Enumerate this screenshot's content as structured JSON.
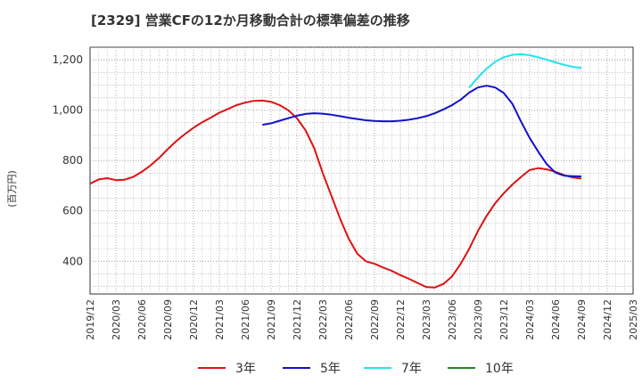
{
  "chart_data": {
    "type": "line",
    "title": "[2329]  営業CFの12か月移動合計の標準偏差の推移",
    "ylabel": "(百万円)",
    "xlabel": "",
    "ylim": [
      270,
      1250
    ],
    "y_ticks": [
      400,
      600,
      800,
      "1,000",
      "1,200"
    ],
    "x_ticks": [
      "2019/12",
      "2020/03",
      "2020/06",
      "2020/09",
      "2020/12",
      "2021/03",
      "2021/06",
      "2021/09",
      "2021/12",
      "2022/03",
      "2022/06",
      "2022/09",
      "2022/12",
      "2023/03",
      "2023/06",
      "2023/09",
      "2023/12",
      "2024/03",
      "2024/06",
      "2024/09",
      "2024/12",
      "2025/03"
    ],
    "grid": true,
    "legend_position": "bottom",
    "series": [
      {
        "name": "3年",
        "color": "#dd1111",
        "x": [
          "2019/12",
          "2020/01",
          "2020/02",
          "2020/03",
          "2020/04",
          "2020/05",
          "2020/06",
          "2020/07",
          "2020/08",
          "2020/09",
          "2020/10",
          "2020/11",
          "2020/12",
          "2021/01",
          "2021/02",
          "2021/03",
          "2021/04",
          "2021/05",
          "2021/06",
          "2021/07",
          "2021/08",
          "2021/09",
          "2021/10",
          "2021/11",
          "2021/12",
          "2022/01",
          "2022/02",
          "2022/03",
          "2022/04",
          "2022/05",
          "2022/06",
          "2022/07",
          "2022/08",
          "2022/09",
          "2022/10",
          "2022/11",
          "2022/12",
          "2023/01",
          "2023/02",
          "2023/03",
          "2023/04",
          "2023/05",
          "2023/06",
          "2023/07",
          "2023/08",
          "2023/09",
          "2023/10",
          "2023/11",
          "2023/12",
          "2024/01",
          "2024/02",
          "2024/03",
          "2024/04",
          "2024/05",
          "2024/06",
          "2024/07",
          "2024/08",
          "2024/09"
        ],
        "values": [
          708,
          725,
          730,
          722,
          724,
          735,
          755,
          780,
          810,
          845,
          877,
          905,
          930,
          952,
          970,
          990,
          1005,
          1020,
          1030,
          1037,
          1038,
          1033,
          1020,
          1000,
          968,
          920,
          850,
          750,
          660,
          570,
          490,
          430,
          400,
          390,
          375,
          362,
          345,
          330,
          314,
          298,
          296,
          310,
          340,
          390,
          450,
          520,
          580,
          630,
          670,
          705,
          735,
          762,
          770,
          765,
          755,
          742,
          733,
          728
        ]
      },
      {
        "name": "5年",
        "color": "#1111cc",
        "x": [
          "2021/08",
          "2021/09",
          "2021/10",
          "2021/11",
          "2021/12",
          "2022/01",
          "2022/02",
          "2022/03",
          "2022/04",
          "2022/05",
          "2022/06",
          "2022/07",
          "2022/08",
          "2022/09",
          "2022/10",
          "2022/11",
          "2022/12",
          "2023/01",
          "2023/02",
          "2023/03",
          "2023/04",
          "2023/05",
          "2023/06",
          "2023/07",
          "2023/08",
          "2023/09",
          "2023/10",
          "2023/11",
          "2023/12",
          "2024/01",
          "2024/02",
          "2024/03",
          "2024/04",
          "2024/05",
          "2024/06",
          "2024/07",
          "2024/08",
          "2024/09"
        ],
        "values": [
          942,
          948,
          958,
          968,
          978,
          985,
          988,
          986,
          982,
          976,
          970,
          965,
          960,
          957,
          956,
          956,
          958,
          962,
          968,
          976,
          988,
          1003,
          1020,
          1042,
          1070,
          1090,
          1097,
          1090,
          1068,
          1025,
          955,
          890,
          835,
          785,
          752,
          740,
          738,
          737
        ]
      },
      {
        "name": "7年",
        "color": "#22e5ee",
        "x": [
          "2023/08",
          "2023/09",
          "2023/10",
          "2023/11",
          "2023/12",
          "2024/01",
          "2024/02",
          "2024/03",
          "2024/04",
          "2024/05",
          "2024/06",
          "2024/07",
          "2024/08",
          "2024/09"
        ],
        "values": [
          1090,
          1130,
          1165,
          1192,
          1210,
          1220,
          1222,
          1218,
          1210,
          1200,
          1190,
          1180,
          1172,
          1168
        ]
      },
      {
        "name": "10年",
        "color": "#228822",
        "x": [],
        "values": []
      }
    ]
  }
}
